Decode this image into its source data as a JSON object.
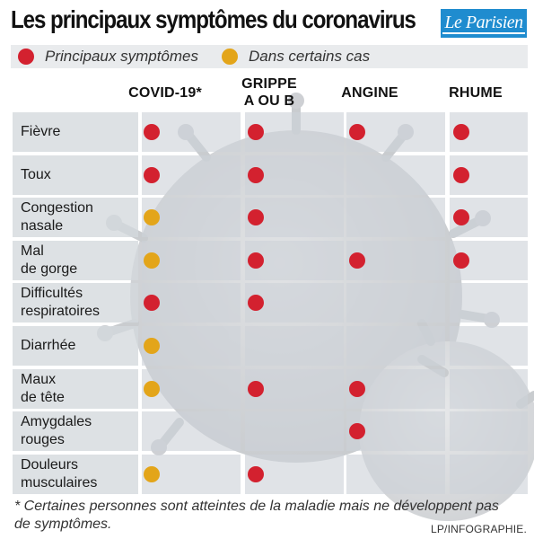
{
  "header": {
    "title": "Les principaux symptômes du coronavirus",
    "logo_text": "Le Parisien"
  },
  "colors": {
    "main": "#d3212f",
    "some_cases": "#e3a51a"
  },
  "legend": [
    {
      "label": "Principaux symptômes",
      "kind": "main"
    },
    {
      "label": "Dans certains cas",
      "kind": "some_cases"
    }
  ],
  "columns": [
    "COVID-19*",
    "GRIPPE\nA OU B",
    "ANGINE",
    "RHUME"
  ],
  "rows": [
    {
      "label": "Fièvre",
      "marks": [
        "main",
        "main",
        "main",
        "main"
      ]
    },
    {
      "label": "Toux",
      "marks": [
        "main",
        "main",
        "",
        "main"
      ]
    },
    {
      "label": "Congestion\nnasale",
      "marks": [
        "some_cases",
        "main",
        "",
        "main"
      ]
    },
    {
      "label": "Mal\nde gorge",
      "marks": [
        "some_cases",
        "main",
        "main",
        "main"
      ]
    },
    {
      "label": "Difficultés\nrespiratoires",
      "marks": [
        "main",
        "main",
        "",
        ""
      ]
    },
    {
      "label": "Diarrhée",
      "marks": [
        "some_cases",
        "",
        "",
        ""
      ]
    },
    {
      "label": "Maux\nde tête",
      "marks": [
        "some_cases",
        "main",
        "main",
        ""
      ]
    },
    {
      "label": "Amygdales\nrouges",
      "marks": [
        "",
        "",
        "main",
        ""
      ]
    },
    {
      "label": "Douleurs\nmusculaires",
      "marks": [
        "some_cases",
        "main",
        "",
        ""
      ]
    }
  ],
  "footnote": "* Certaines personnes sont atteintes de la maladie mais ne développent pas de symptômes.",
  "credit": "LP/INFOGRAPHIE."
}
